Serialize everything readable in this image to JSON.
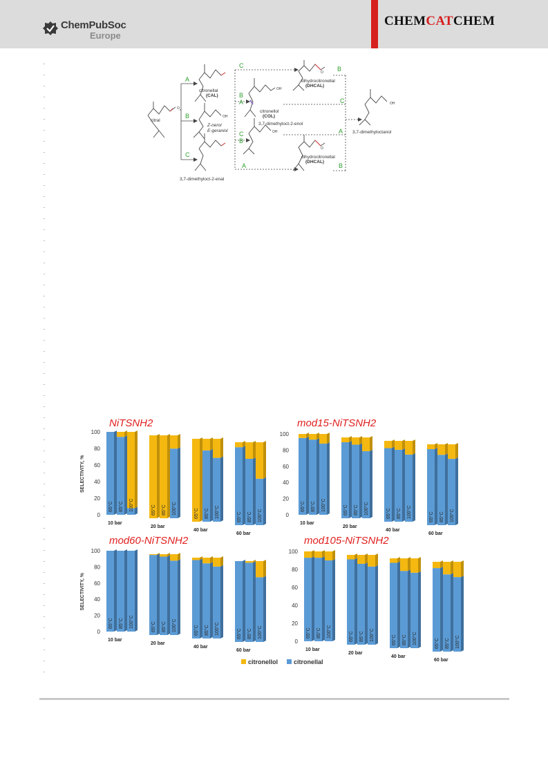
{
  "header": {
    "publisher_name": "ChemPubSoc",
    "publisher_sub": "Europe",
    "journal_part1": "CHEM",
    "journal_part2": "CAT",
    "journal_part3": "CHEM",
    "accent_color": "#d61f1f"
  },
  "scheme": {
    "start_label": "citral",
    "routes": [
      "A",
      "B",
      "C"
    ],
    "cal_name": "citronellal",
    "cal_abbr": "(CAL)",
    "nerol_1": "Z-nerol",
    "nerol_2": "E-geraniol",
    "enal": "3,7-dimethyloct-2-enal",
    "col_name": "citronellol",
    "col_abbr": "(COL)",
    "enol": "3,7-dimethyloct-2-enol",
    "dhcal_name": "dihydrocitronellal",
    "dhcal_abbr": "(DHCAL)",
    "oh": "OH",
    "o": "O",
    "final": "3,7-dimethyloctanol"
  },
  "chart_data": [
    {
      "type": "bar",
      "title": "NiTSNH2",
      "ylabel": "SELECTIVITY, %",
      "ylim": [
        0,
        100
      ],
      "yticks": [
        "0",
        "20",
        "40",
        "60",
        "80",
        "100"
      ],
      "groups": [
        "10 bar",
        "20 bar",
        "40 bar",
        "60 bar"
      ],
      "temps": [
        "65°C",
        "85°C",
        "100°C"
      ],
      "series": [
        {
          "name": "citronellal",
          "values": [
            [
              100,
              94,
              8
            ],
            [
              0,
              0,
              84
            ],
            [
              0,
              86,
              77
            ],
            [
              94,
              80,
              56
            ]
          ]
        },
        {
          "name": "citronellol",
          "values": [
            [
              0,
              6,
              92
            ],
            [
              100,
              100,
              16
            ],
            [
              100,
              14,
              23
            ],
            [
              6,
              20,
              44
            ]
          ]
        }
      ]
    },
    {
      "type": "bar",
      "title": "mod15-NiTSNH2",
      "ylabel": "",
      "ylim": [
        0,
        100
      ],
      "yticks": [
        "0",
        "20",
        "40",
        "60",
        "80",
        "100"
      ],
      "groups": [
        "10 bar",
        "20 bar",
        "40 bar",
        "60 bar"
      ],
      "temps": [
        "65°C",
        "85°C",
        "100°C"
      ],
      "series": [
        {
          "name": "citronellal",
          "values": [
            [
              95,
              93,
              88
            ],
            [
              94,
              91,
              83
            ],
            [
              91,
              89,
              83
            ],
            [
              94,
              87,
              82
            ]
          ]
        },
        {
          "name": "citronellol",
          "values": [
            [
              5,
              7,
              12
            ],
            [
              6,
              9,
              17
            ],
            [
              9,
              11,
              17
            ],
            [
              6,
              13,
              18
            ]
          ]
        }
      ]
    },
    {
      "type": "bar",
      "title": "mod60-NiTSNH2",
      "ylabel": "SELECTIVITY, %",
      "ylim": [
        0,
        100
      ],
      "yticks": [
        "0",
        "20",
        "40",
        "60",
        "80",
        "100"
      ],
      "groups": [
        "10 bar",
        "20 bar",
        "40 bar",
        "60 bar"
      ],
      "temps": [
        "65°C",
        "85°C",
        "100°C"
      ],
      "series": [
        {
          "name": "citronellal",
          "values": [
            [
              100,
              100,
              100
            ],
            [
              99,
              97,
              92
            ],
            [
              97,
              93,
              89
            ],
            [
              100,
              98,
              80
            ]
          ]
        },
        {
          "name": "citronellol",
          "values": [
            [
              0,
              0,
              0
            ],
            [
              1,
              3,
              8
            ],
            [
              3,
              7,
              11
            ],
            [
              0,
              2,
              20
            ]
          ]
        }
      ]
    },
    {
      "type": "bar",
      "title": "mod105-NiTSNH2",
      "ylabel": "",
      "ylim": [
        0,
        100
      ],
      "yticks": [
        "0",
        "20",
        "40",
        "60",
        "80",
        "100"
      ],
      "groups": [
        "10 bar",
        "20 bar",
        "40 bar",
        "60 bar"
      ],
      "temps": [
        "65°C",
        "85°C",
        "100°C"
      ],
      "series": [
        {
          "name": "citronellal",
          "values": [
            [
              93,
              93,
              90
            ],
            [
              95,
              90,
              87
            ],
            [
              95,
              86,
              84
            ],
            [
              93,
              86,
              83
            ]
          ]
        },
        {
          "name": "citronellol",
          "values": [
            [
              7,
              7,
              10
            ],
            [
              5,
              10,
              13
            ],
            [
              5,
              14,
              16
            ],
            [
              7,
              14,
              17
            ]
          ]
        }
      ]
    }
  ],
  "legend": {
    "items": [
      {
        "label": "citronellol",
        "color": "#f4b811"
      },
      {
        "label": "citronellal",
        "color": "#5b9bd5"
      }
    ]
  }
}
